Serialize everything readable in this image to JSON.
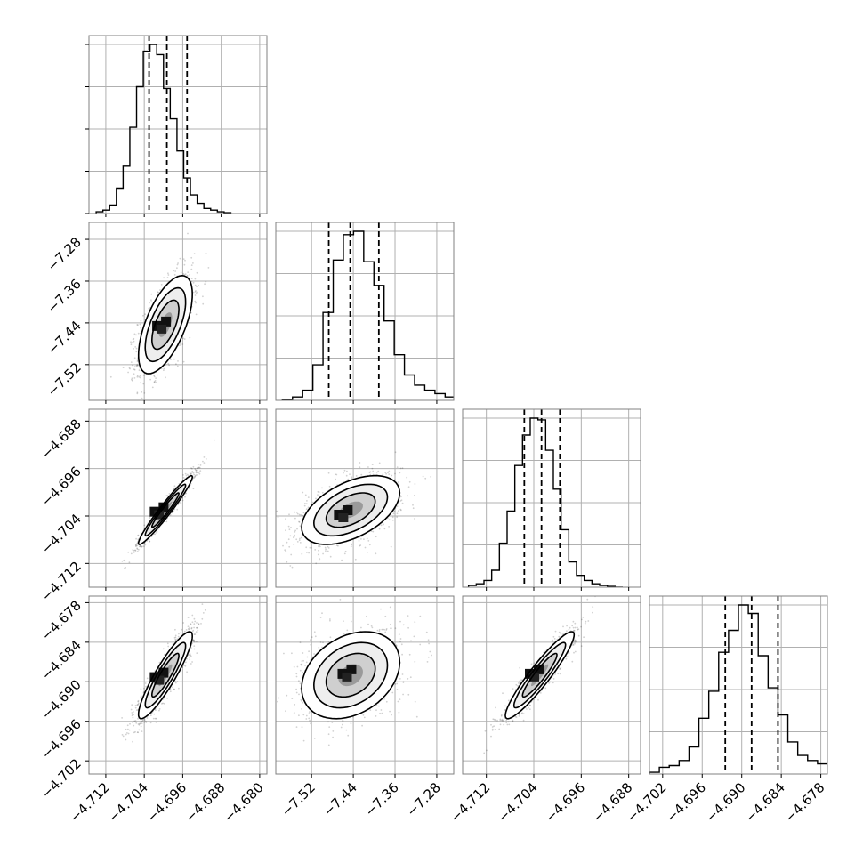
{
  "chart_data": {
    "type": "corner",
    "n_params": 4,
    "axis_labels": [
      "",
      "",
      "",
      ""
    ],
    "grid": true,
    "ticks": [
      [
        -4.712,
        -4.704,
        -4.696,
        -4.688,
        -4.68
      ],
      [
        -7.52,
        -7.44,
        -7.36,
        -7.28
      ],
      [
        -4.712,
        -4.704,
        -4.696,
        -4.688
      ],
      [
        -4.702,
        -4.696,
        -4.69,
        -4.684,
        -4.678
      ]
    ],
    "tick_labels": [
      [
        "−4.712",
        "−4.704",
        "−4.696",
        "−4.688",
        "−4.680"
      ],
      [
        "−7.52",
        "−7.44",
        "−7.36",
        "−7.28"
      ],
      [
        "−4.712",
        "−4.704",
        "−4.696",
        "−4.688"
      ],
      [
        "−4.702",
        "−4.696",
        "−4.690",
        "−4.684",
        "−4.678"
      ]
    ],
    "ranges": [
      [
        -4.7155,
        -4.6785
      ],
      [
        -7.5885,
        -7.2475
      ],
      [
        -4.716,
        -4.686
      ],
      [
        -4.704,
        -4.677
      ]
    ],
    "marginals": [
      {
        "param_index": 0,
        "quantiles": [
          -4.703,
          -4.6993,
          -4.6951
        ],
        "bins": [
          -4.714,
          -4.7126,
          -4.7112,
          -4.7098,
          -4.7084,
          -4.707,
          -4.7056,
          -4.7042,
          -4.7028,
          -4.7014,
          -4.7,
          -4.6986,
          -4.6972,
          -4.6958,
          -4.6944,
          -4.693,
          -4.6916,
          -4.6902,
          -4.6888,
          -4.6874,
          -4.686
        ],
        "counts": [
          1,
          2,
          5,
          15,
          28,
          51,
          75,
          96,
          100,
          94,
          74,
          56,
          37,
          21,
          11,
          6,
          3,
          2,
          1,
          0.5
        ]
      },
      {
        "param_index": 1,
        "quantiles": [
          -7.487,
          -7.446,
          -7.391
        ],
        "bins": [
          -7.576,
          -7.5565,
          -7.537,
          -7.5175,
          -7.498,
          -7.4785,
          -7.459,
          -7.4395,
          -7.42,
          -7.4005,
          -7.381,
          -7.3615,
          -7.342,
          -7.3225,
          -7.303,
          -7.2835,
          -7.264,
          -7.2445,
          -7.225,
          -7.2055,
          -7.186
        ],
        "counts": [
          0.5,
          2,
          6,
          21,
          52,
          83,
          98,
          100,
          82,
          68,
          47,
          27,
          15,
          9,
          6,
          4,
          2,
          1,
          0.5,
          0
        ]
      },
      {
        "param_index": 2,
        "quantiles": [
          -4.7056,
          -4.7027,
          -4.6996
        ],
        "bins": [
          -4.715,
          -4.7137,
          -4.7124,
          -4.7111,
          -4.7098,
          -4.7085,
          -4.7072,
          -4.7059,
          -4.7046,
          -4.7033,
          -4.702,
          -4.7007,
          -4.6994,
          -4.6981,
          -4.6968,
          -4.6955,
          -4.6942,
          -4.6929,
          -4.6916,
          -4.6903,
          -4.689
        ],
        "counts": [
          1,
          2,
          4,
          10,
          26,
          45,
          72,
          90,
          100,
          99,
          81,
          58,
          34,
          15,
          7,
          4,
          2,
          1,
          0.5,
          0
        ]
      },
      {
        "param_index": 3,
        "quantiles": [
          -4.6925,
          -4.6885,
          -4.6845
        ],
        "bins": [
          -4.704,
          -4.7025,
          -4.701,
          -4.6995,
          -4.698,
          -4.6965,
          -4.695,
          -4.6935,
          -4.692,
          -4.6905,
          -4.689,
          -4.6875,
          -4.686,
          -4.6845,
          -4.683,
          -4.6815,
          -4.68,
          -4.6785,
          -4.677
        ],
        "counts": [
          1,
          4,
          5,
          8,
          16,
          33,
          49,
          72,
          85,
          100,
          95,
          70,
          51,
          35,
          19,
          11,
          8,
          6
        ]
      }
    ],
    "joint": [
      {
        "x": 0,
        "y": 1,
        "mean": [
          -4.6996,
          -7.4435
        ],
        "std": [
          0.0028,
          0.047
        ],
        "rho": 0.62,
        "peak": [
          -4.7005,
          -7.4485
        ]
      },
      {
        "x": 0,
        "y": 2,
        "mean": [
          -4.6996,
          -4.703
        ],
        "std": [
          0.0028,
          0.0029
        ],
        "rho": 0.965,
        "peak": [
          -4.701,
          -4.7035
        ]
      },
      {
        "x": 1,
        "y": 2,
        "mean": [
          -7.445,
          -4.703
        ],
        "std": [
          0.047,
          0.0029
        ],
        "rho": 0.5,
        "peak": [
          -7.46,
          -4.704
        ]
      },
      {
        "x": 0,
        "y": 3,
        "mean": [
          -4.6996,
          -4.689
        ],
        "std": [
          0.0028,
          0.0033
        ],
        "rho": 0.9,
        "peak": [
          -4.701,
          -4.6895
        ]
      },
      {
        "x": 1,
        "y": 3,
        "mean": [
          -7.445,
          -4.689
        ],
        "std": [
          0.047,
          0.0033
        ],
        "rho": 0.3,
        "peak": [
          -7.453,
          -4.689
        ]
      },
      {
        "x": 2,
        "y": 3,
        "mean": [
          -4.703,
          -4.689
        ],
        "std": [
          0.0029,
          0.0033
        ],
        "rho": 0.93,
        "peak": [
          -4.704,
          -4.689
        ]
      }
    ],
    "contour_levels_sigma": [
      0.5,
      1.0,
      1.5,
      2.0
    ]
  }
}
